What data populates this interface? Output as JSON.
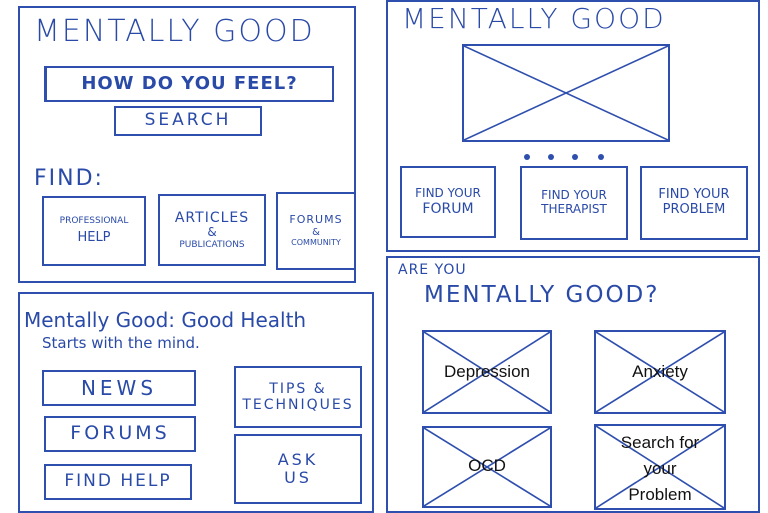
{
  "screen1": {
    "logo": "MENTALLY GOOD",
    "search_prompt": "HOW DO YOU FEEL?",
    "search_button": "SEARCH",
    "find_label": "FIND:",
    "cards": [
      {
        "line1": "PROFESSIONAL",
        "line2": "HELP"
      },
      {
        "line1": "ARTICLES",
        "line2": "&",
        "line3": "PUBLICATIONS"
      },
      {
        "line1": "FORUMS",
        "line2": "&",
        "line3": "COMMUNITY"
      }
    ]
  },
  "screen2": {
    "logo": "MENTALLY GOOD",
    "cards": [
      {
        "line1": "FIND YOUR",
        "line2": "FORUM"
      },
      {
        "line1": "FIND YOUR",
        "line2": "THERAPIST"
      },
      {
        "line1": "FIND YOUR",
        "line2": "PROBLEM"
      }
    ]
  },
  "screen3": {
    "title": "Mentally Good: Good Health",
    "subtitle": "Starts with the mind.",
    "menu": [
      "NEWS",
      "FORUMS",
      "FIND HELP",
      "TIPS & TECHNIQUES",
      "ASK US"
    ]
  },
  "screen4": {
    "intro": "ARE YOU",
    "heading": "MENTALLY GOOD?",
    "tiles": [
      {
        "lines": [
          "Depression"
        ]
      },
      {
        "lines": [
          "Anxiety"
        ]
      },
      {
        "lines": [
          "OCD"
        ]
      },
      {
        "lines": [
          "Search for",
          "your",
          "Problem"
        ]
      }
    ]
  },
  "colors": {
    "ink": "#2f4fae",
    "label": "#111111"
  }
}
